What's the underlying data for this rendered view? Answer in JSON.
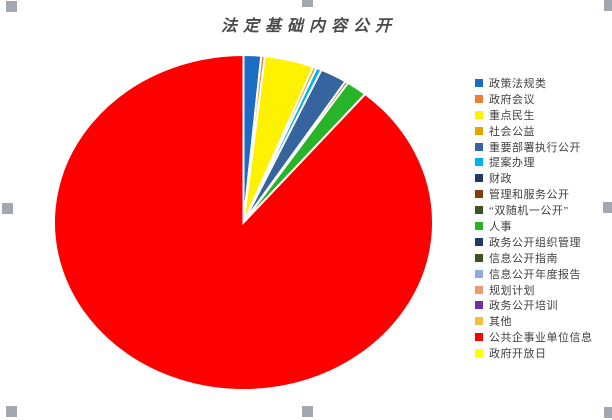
{
  "window": {
    "background_color": "#ffffff"
  },
  "chart_data": {
    "type": "pie",
    "title": "法定基础内容公开",
    "title_color": "#4a4a4a",
    "legend_position": "right",
    "legend_text_color": "#404040",
    "slice_border_color": "#ffffff",
    "series": [
      {
        "label": "政策法规类",
        "value": 1.5,
        "color": "#1C6BC4"
      },
      {
        "label": "政府会议",
        "value": 0.3,
        "color": "#ED7D31"
      },
      {
        "label": "重点民生",
        "value": 4.2,
        "color": "#FFF200"
      },
      {
        "label": "社会公益",
        "value": 0.3,
        "color": "#E3A300"
      },
      {
        "label": "重要部署执行公开",
        "value": 2.3,
        "color": "#35649F"
      },
      {
        "label": "提案办理",
        "value": 0.45,
        "color": "#00B0F0"
      },
      {
        "label": "财政",
        "value": 0,
        "color": "#203864"
      },
      {
        "label": "管理和服务公开",
        "value": 0.25,
        "color": "#843C0C"
      },
      {
        "label": "“双随机一公开”",
        "value": 0,
        "color": "#375623"
      },
      {
        "label": "人事",
        "value": 1.8,
        "color": "#28B428"
      },
      {
        "label": "政务公开组织管理",
        "value": 0,
        "color": "#203864"
      },
      {
        "label": "信息公开指南",
        "value": 0,
        "color": "#375623"
      },
      {
        "label": "信息公开年度报告",
        "value": 0,
        "color": "#8FAADC"
      },
      {
        "label": "规划计划",
        "value": 0,
        "color": "#EC9B6E"
      },
      {
        "label": "政务公开培训",
        "value": 0,
        "color": "#7030A0"
      },
      {
        "label": "其他",
        "value": 0,
        "color": "#EFBF45"
      },
      {
        "label": "公共企事业单位信息",
        "value": 88.9,
        "color": "#FF0000"
      },
      {
        "label": "政府开放日",
        "value": 0,
        "color": "#FFFF00"
      }
    ],
    "slice_draw_order": [
      0,
      1,
      2,
      3,
      5,
      4,
      7,
      9,
      16
    ]
  },
  "selection": {
    "handle_color": "#A2A7B0",
    "handles": [
      "top-left",
      "top-middle",
      "top-right",
      "middle-left",
      "middle-right",
      "bottom-left",
      "bottom-middle",
      "bottom-right"
    ]
  }
}
